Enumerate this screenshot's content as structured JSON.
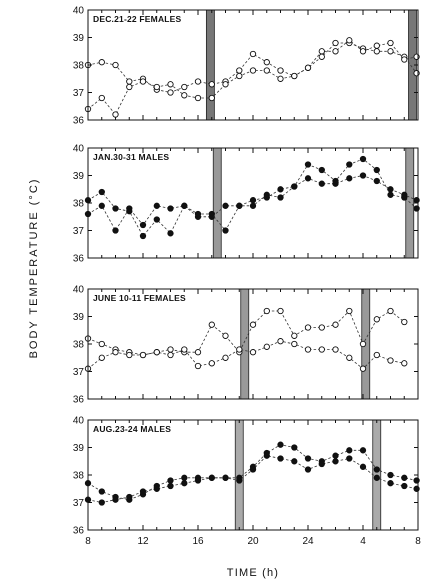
{
  "chart_data": {
    "type": "line",
    "ylabel": "BODY  TEMPERATURE  (°C)",
    "xlabel": "TIME (h)",
    "x_tick_labels": [
      "8",
      "12",
      "16",
      "20",
      "24",
      "4",
      "8"
    ],
    "xlim": [
      8,
      32
    ],
    "panels": [
      {
        "title": "DEC.21-22 FEMALES",
        "ylim": [
          36,
          40
        ],
        "y_ticks": [
          36,
          37,
          38,
          39,
          40
        ],
        "bars": [
          16.9,
          31.6
        ],
        "bar_color": "#777777",
        "marker": "open",
        "series": [
          {
            "x": [
              8,
              9,
              10,
              11,
              12,
              13,
              14,
              15,
              16,
              17,
              18,
              19,
              20,
              21,
              22,
              23,
              24,
              25,
              26,
              27,
              28,
              29,
              30,
              31,
              31.9
            ],
            "y": [
              38.0,
              38.1,
              38.0,
              37.4,
              37.5,
              37.1,
              37.0,
              37.2,
              37.4,
              37.3,
              37.4,
              37.8,
              38.4,
              38.1,
              37.8,
              37.6,
              37.9,
              38.3,
              38.8,
              38.8,
              38.6,
              38.5,
              38.5,
              38.3,
              37.7
            ]
          },
          {
            "x": [
              8,
              9,
              10,
              11,
              12,
              13,
              14,
              15,
              16,
              17,
              18,
              19,
              20,
              21,
              22,
              23,
              24,
              25,
              26,
              27,
              28,
              29,
              30,
              31,
              31.9
            ],
            "y": [
              36.4,
              36.8,
              36.2,
              37.2,
              37.4,
              37.2,
              37.3,
              36.9,
              36.8,
              36.8,
              37.3,
              37.6,
              37.8,
              37.8,
              37.5,
              37.6,
              37.9,
              38.5,
              38.5,
              38.9,
              38.5,
              38.7,
              38.8,
              38.2,
              38.3
            ]
          }
        ]
      },
      {
        "title": "JAN.30-31 MALES",
        "ylim": [
          36,
          40
        ],
        "y_ticks": [
          36,
          37,
          38,
          39,
          40
        ],
        "bars": [
          17.4,
          31.4
        ],
        "bar_color": "#999999",
        "marker": "filled",
        "series": [
          {
            "x": [
              8,
              9,
              10,
              11,
              12,
              13,
              14,
              15,
              16,
              17,
              18,
              19,
              20,
              21,
              22,
              23,
              24,
              25,
              26,
              27,
              28,
              29,
              30,
              31,
              31.9
            ],
            "y": [
              37.6,
              37.9,
              37.0,
              37.8,
              37.2,
              37.9,
              37.8,
              37.9,
              37.5,
              37.5,
              37.9,
              37.9,
              38.1,
              38.2,
              38.5,
              38.6,
              38.9,
              38.7,
              38.7,
              38.9,
              39.0,
              38.8,
              38.5,
              38.3,
              38.1
            ]
          },
          {
            "x": [
              8,
              9,
              10,
              11,
              12,
              13,
              14,
              15,
              16,
              17,
              18,
              19,
              20,
              21,
              22,
              23,
              24,
              25,
              26,
              27,
              28,
              29,
              30,
              31,
              31.9
            ],
            "y": [
              38.1,
              38.4,
              37.8,
              37.7,
              36.8,
              37.4,
              36.9,
              37.9,
              37.6,
              37.6,
              37.0,
              37.9,
              37.9,
              38.3,
              38.2,
              38.6,
              39.4,
              39.2,
              38.8,
              39.4,
              39.6,
              39.2,
              38.3,
              38.2,
              37.8
            ]
          }
        ]
      },
      {
        "title": "JUNE 10-11 FEMALES",
        "ylim": [
          36,
          40
        ],
        "y_ticks": [
          36,
          37,
          38,
          39,
          40
        ],
        "bars": [
          19.4,
          28.2
        ],
        "bar_color": "#999999",
        "marker": "open",
        "series": [
          {
            "x": [
              8,
              9,
              10,
              11,
              12,
              13,
              14,
              15,
              16,
              17,
              18,
              19,
              20,
              21,
              22,
              23,
              24,
              25,
              26,
              27,
              28,
              29,
              30,
              31
            ],
            "y": [
              38.2,
              38.0,
              37.8,
              37.7,
              37.6,
              37.7,
              37.8,
              37.7,
              37.7,
              38.7,
              38.3,
              37.7,
              38.7,
              39.2,
              39.2,
              38.3,
              38.6,
              38.6,
              38.7,
              39.2,
              38.0,
              38.9,
              39.2,
              38.8
            ]
          },
          {
            "x": [
              8,
              9,
              10,
              11,
              12,
              13,
              14,
              15,
              16,
              17,
              18,
              19,
              20,
              21,
              22,
              23,
              24,
              25,
              26,
              27,
              28,
              29,
              30,
              31
            ],
            "y": [
              37.1,
              37.5,
              37.7,
              37.6,
              37.6,
              37.7,
              37.6,
              37.8,
              37.2,
              37.3,
              37.5,
              37.8,
              37.7,
              37.9,
              38.1,
              38.0,
              37.8,
              37.8,
              37.8,
              37.5,
              37.1,
              37.6,
              37.4,
              37.3
            ]
          }
        ]
      },
      {
        "title": "AUG.23-24 MALES",
        "ylim": [
          36,
          40
        ],
        "y_ticks": [
          36,
          37,
          38,
          39,
          40
        ],
        "bars": [
          19.0,
          29.0
        ],
        "bar_color": "#aaaaaa",
        "marker": "filled",
        "series": [
          {
            "x": [
              8,
              9,
              10,
              11,
              12,
              13,
              14,
              15,
              16,
              17,
              18,
              19,
              20,
              21,
              22,
              23,
              24,
              25,
              26,
              27,
              28,
              29,
              30,
              31,
              31.9
            ],
            "y": [
              37.7,
              37.4,
              37.2,
              37.1,
              37.3,
              37.6,
              37.8,
              37.9,
              37.9,
              37.9,
              37.9,
              37.9,
              38.3,
              38.8,
              39.1,
              39.0,
              38.6,
              38.5,
              38.7,
              38.9,
              38.9,
              38.2,
              38.0,
              37.9,
              37.8
            ]
          },
          {
            "x": [
              8,
              9,
              10,
              11,
              12,
              13,
              14,
              15,
              16,
              17,
              18,
              19,
              20,
              21,
              22,
              23,
              24,
              25,
              26,
              27,
              28,
              29,
              30,
              31,
              31.9
            ],
            "y": [
              37.1,
              37.0,
              37.1,
              37.2,
              37.4,
              37.5,
              37.6,
              37.7,
              37.8,
              37.9,
              37.9,
              37.8,
              38.2,
              38.7,
              38.6,
              38.5,
              38.2,
              38.4,
              38.5,
              38.6,
              38.3,
              37.9,
              37.7,
              37.6,
              37.5
            ]
          }
        ]
      }
    ]
  }
}
